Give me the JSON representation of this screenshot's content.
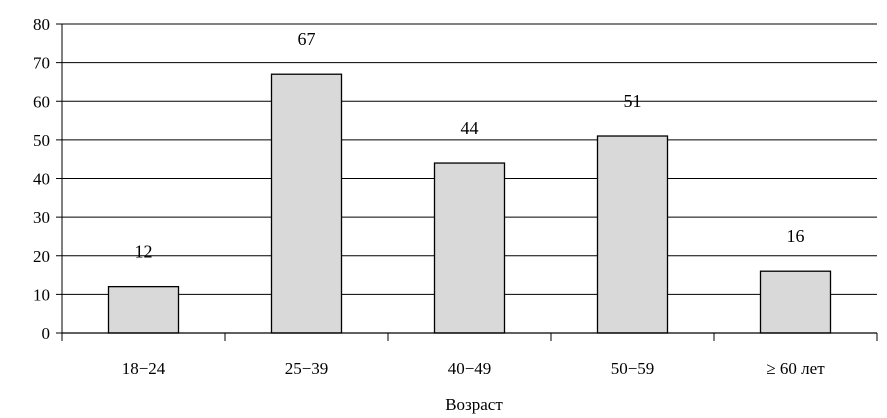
{
  "chart_data": {
    "type": "bar",
    "categories": [
      "18−24",
      "25−39",
      "40−49",
      "50−59",
      "≥ 60 лет"
    ],
    "values": [
      12,
      67,
      44,
      51,
      16
    ],
    "data_labels": [
      "12",
      "67",
      "44",
      "51",
      "16"
    ],
    "xlabel": "Возраст",
    "ylabel": "",
    "ylim": [
      0,
      80
    ],
    "yticks": [
      0,
      10,
      20,
      30,
      40,
      50,
      60,
      70,
      80
    ],
    "grid": "horizontal",
    "bar_color": "#d9d9d9",
    "bar_edge_color": "#000000",
    "grid_color": "#000000"
  }
}
